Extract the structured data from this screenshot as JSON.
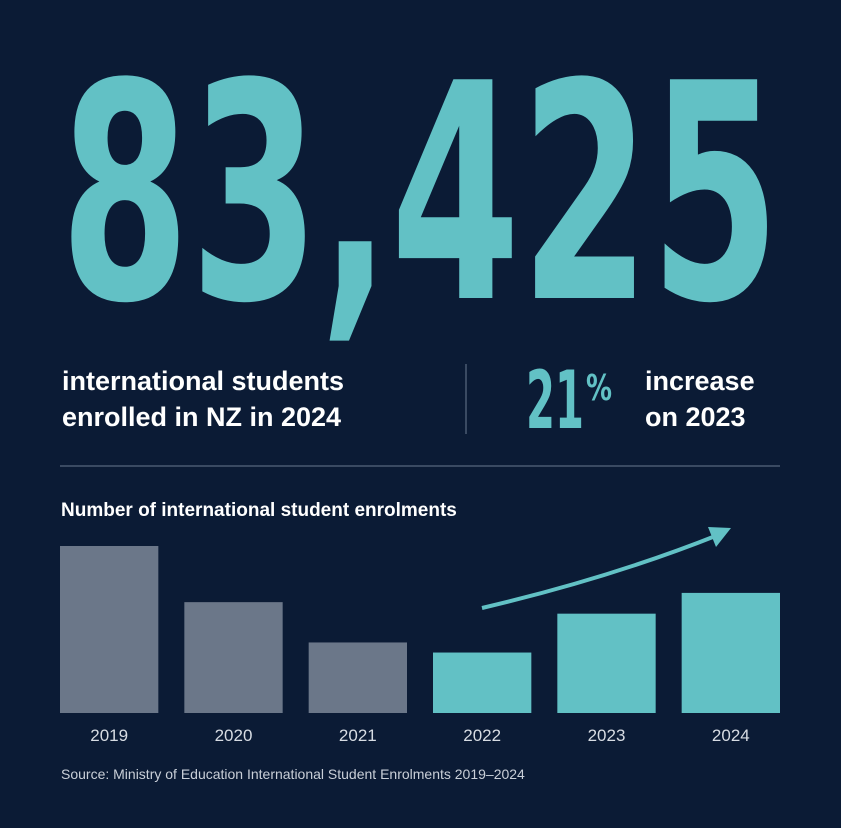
{
  "headline": {
    "number": "83,425",
    "lines": [
      "international students",
      "enrolled in NZ in 2024"
    ]
  },
  "change": {
    "number": "21",
    "sign": "%",
    "lines": [
      "increase",
      "on 2023"
    ]
  },
  "chart_data": {
    "type": "bar",
    "title": "Number of international student enrolments",
    "categories": [
      "2019",
      "2020",
      "2021",
      "2022",
      "2023",
      "2024"
    ],
    "values": [
      116000,
      77000,
      49000,
      42000,
      69000,
      83425
    ],
    "colors": [
      "#6b7789",
      "#6b7789",
      "#6b7789",
      "#62c1c5",
      "#62c1c5",
      "#62c1c5"
    ]
  },
  "source": "Source: Ministry of Education International Student Enrolments 2019–2024"
}
